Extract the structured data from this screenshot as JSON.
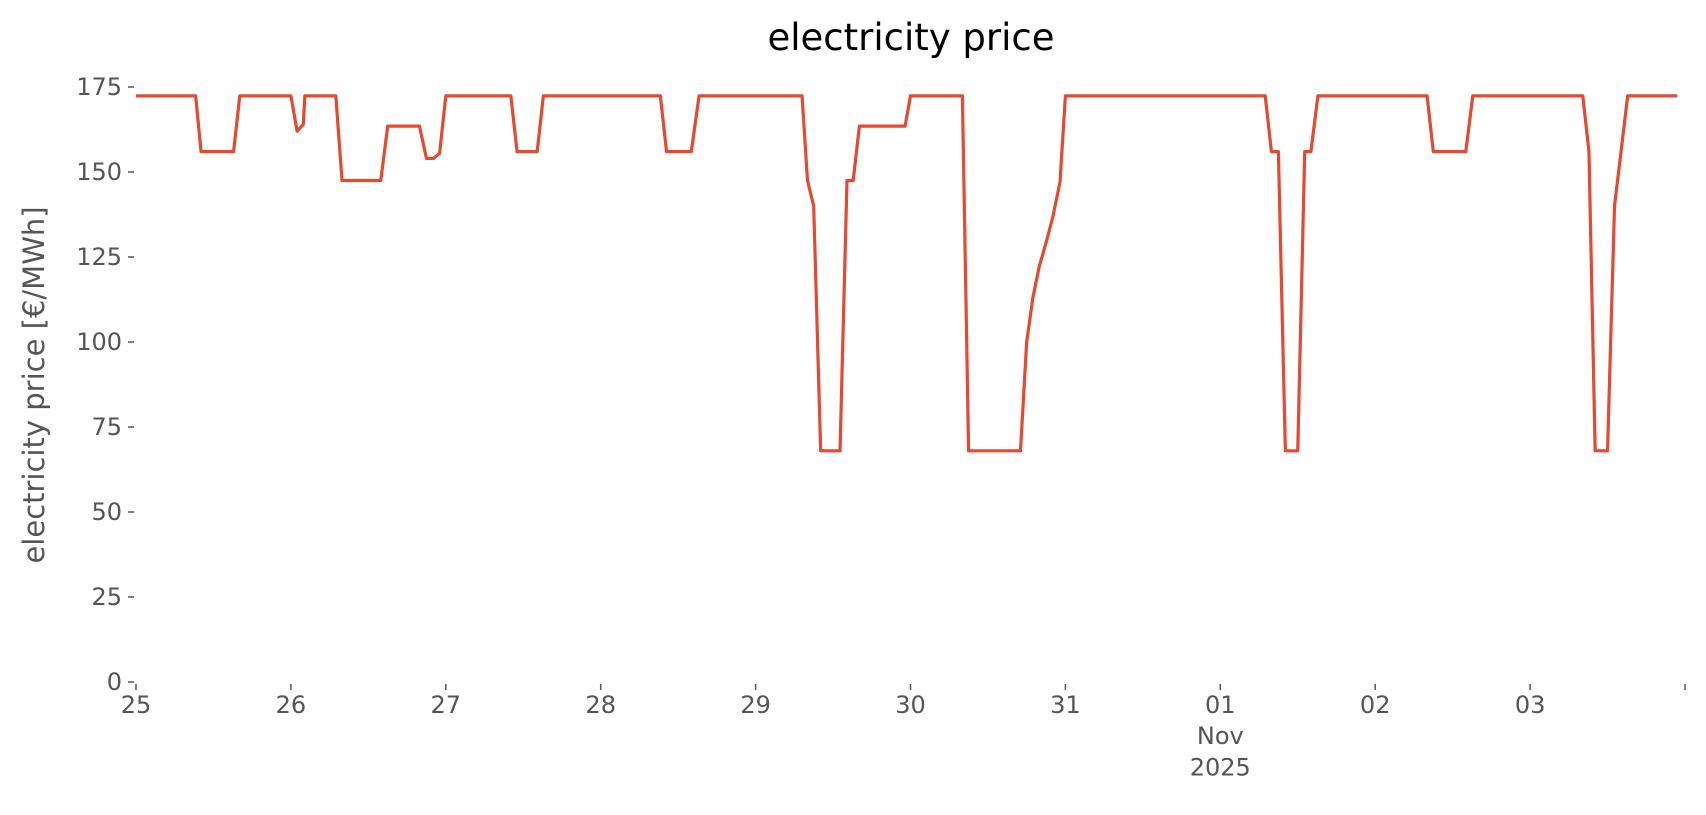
{
  "chart_data": {
    "type": "line",
    "title": "electricity price",
    "ylabel": "electricity price [€/MWh]",
    "x": [
      0,
      0.385,
      0.42,
      0.63,
      0.67,
      1.0,
      1.04,
      1.08,
      1.09,
      1.29,
      1.33,
      1.58,
      1.625,
      1.83,
      1.875,
      1.92,
      1.96,
      2.0,
      2.42,
      2.46,
      2.59,
      2.63,
      3.385,
      3.425,
      3.585,
      3.635,
      4.3,
      4.335,
      4.375,
      4.42,
      4.545,
      4.59,
      4.63,
      4.67,
      4.965,
      5.0,
      5.335,
      5.375,
      5.71,
      5.75,
      5.79,
      5.83,
      5.88,
      5.92,
      5.965,
      6.0,
      7.29,
      7.33,
      7.375,
      7.42,
      7.5,
      7.545,
      7.585,
      7.63,
      8.335,
      8.375,
      8.585,
      8.63,
      9.34,
      9.38,
      9.42,
      9.5,
      9.545,
      9.63,
      9.95
    ],
    "series": [
      {
        "name": "electricity price",
        "color": "#E24A33",
        "values": [
          172.4,
          172.4,
          156,
          156,
          172.4,
          172.4,
          162,
          164,
          172.4,
          172.4,
          147.5,
          147.5,
          163.5,
          163.5,
          154,
          154,
          155.5,
          172.4,
          172.4,
          156,
          156,
          172.4,
          172.4,
          156,
          156,
          172.4,
          172.4,
          147.5,
          140,
          68,
          68,
          147.5,
          147.5,
          163.5,
          163.5,
          172.4,
          172.4,
          68,
          68,
          100,
          113,
          122,
          130,
          137,
          147,
          172.4,
          172.4,
          156,
          156,
          68,
          68,
          156,
          156,
          172.4,
          172.4,
          156,
          156,
          172.4,
          172.4,
          156,
          68,
          68,
          140,
          172.4,
          172.4
        ]
      }
    ],
    "xlim": [
      0,
      10
    ],
    "xticks": [
      {
        "value": 0,
        "label": "25"
      },
      {
        "value": 1,
        "label": "26"
      },
      {
        "value": 2,
        "label": "27"
      },
      {
        "value": 3,
        "label": "28"
      },
      {
        "value": 4,
        "label": "29"
      },
      {
        "value": 5,
        "label": "30"
      },
      {
        "value": 6,
        "label": "31"
      },
      {
        "value": 7,
        "label": "01\nNov\n2025"
      },
      {
        "value": 8,
        "label": "02"
      },
      {
        "value": 9,
        "label": "03"
      },
      {
        "value": 10,
        "label": null
      }
    ],
    "ylim": [
      0,
      175
    ],
    "yticks": [
      0,
      25,
      50,
      75,
      100,
      125,
      150,
      175
    ],
    "grid": false
  }
}
